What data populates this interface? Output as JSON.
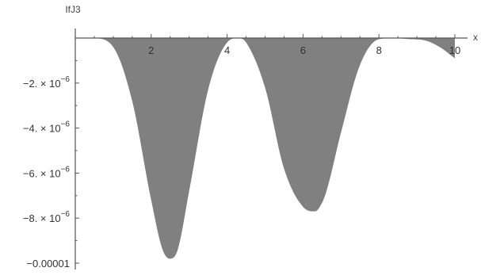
{
  "chart_data": {
    "type": "area",
    "title": "",
    "xlabel": "x",
    "ylabel": "IfJ3",
    "xlim": [
      0,
      10
    ],
    "ylim": [
      -1e-05,
      0
    ],
    "x_ticks": [
      2,
      4,
      6,
      8,
      10
    ],
    "x_tick_labels": [
      "2",
      "4",
      "6",
      "8",
      "10"
    ],
    "y_ticks": [
      -2e-06,
      -4e-06,
      -6e-06,
      -8e-06,
      -1e-05
    ],
    "y_tick_labels": [
      {
        "main": "−2. × 10",
        "exp": "−6"
      },
      {
        "main": "−4. × 10",
        "exp": "−6"
      },
      {
        "main": "−6. × 10",
        "exp": "−6"
      },
      {
        "main": "−8. × 10",
        "exp": "−6"
      },
      {
        "main": "−0.00001",
        "exp": ""
      }
    ],
    "fill_color": "#808080",
    "grid": false,
    "series": [
      {
        "x": [
          0,
          0.5,
          1.0,
          1.5,
          2.0,
          2.3,
          2.5,
          2.7,
          3.0,
          3.5,
          4.0,
          4.3,
          4.5,
          5.0,
          5.5,
          6.0,
          6.3,
          6.4,
          6.6,
          7.0,
          7.5,
          8.0,
          8.4,
          8.8,
          9.2,
          9.6,
          10.0
        ],
        "y": [
          0,
          -1e-08,
          -4e-07,
          -2.8e-06,
          -7.2e-06,
          -9.4e-06,
          -9.8e-06,
          -9.4e-06,
          -6.8e-06,
          -2.3e-06,
          -2e-07,
          0,
          -2e-07,
          -2.2e-06,
          -5.8e-06,
          -7.5e-06,
          -7.7e-06,
          -7.6e-06,
          -6.9e-06,
          -4.2e-06,
          -1.2e-06,
          -5e-08,
          0,
          -5e-08,
          -1e-07,
          -4e-07,
          -9e-07
        ]
      }
    ]
  }
}
